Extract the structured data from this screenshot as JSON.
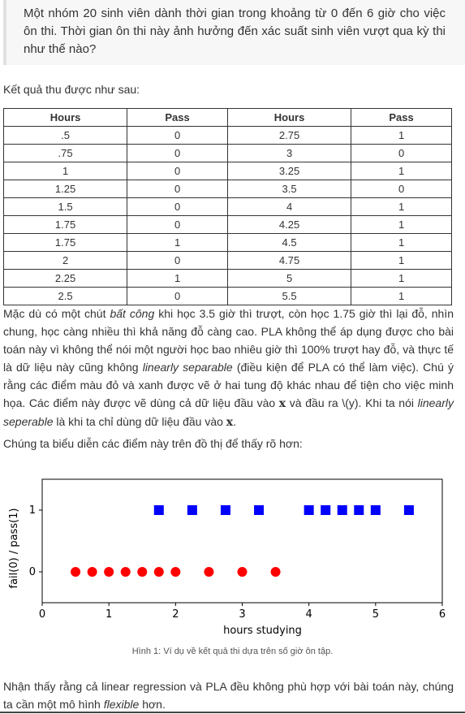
{
  "question": "Một nhóm 20 sinh viên dành thời gian trong khoảng từ 0 đến 6 giờ cho việc ôn thi. Thời gian ôn thi này ảnh hưởng đến xác suất sinh viên vượt qua kỳ thi như thế nào?",
  "intro": "Kết quả thu được như sau:",
  "table": {
    "headers": [
      "Hours",
      "Pass",
      "Hours",
      "Pass"
    ],
    "rows": [
      [
        ".5",
        "0",
        "2.75",
        "1"
      ],
      [
        ".75",
        "0",
        "3",
        "0"
      ],
      [
        "1",
        "0",
        "3.25",
        "1"
      ],
      [
        "1.25",
        "0",
        "3.5",
        "0"
      ],
      [
        "1.5",
        "0",
        "4",
        "1"
      ],
      [
        "1.75",
        "0",
        "4.25",
        "1"
      ],
      [
        "1.75",
        "1",
        "4.5",
        "1"
      ],
      [
        "2",
        "0",
        "4.75",
        "1"
      ],
      [
        "2.25",
        "1",
        "5",
        "1"
      ],
      [
        "2.5",
        "0",
        "5.5",
        "1"
      ]
    ]
  },
  "paragraph1": {
    "s1": "Mặc dù có một chút ",
    "s2": "bất công",
    "s3": " khi học 3.5 giờ thì trượt, còn học 1.75 giờ thì lại đỗ, nhìn chung, học càng nhiều thì khả năng đỗ càng cao. PLA không thể áp dụng được cho bài toán này vì không thể nói một người học bao nhiêu giờ thì 100% trượt hay đỗ, và thực tế là dữ liệu này cũng không ",
    "s4": "linearly separable",
    "s5": " (điều kiện để PLA có thể làm việc). Chú ý rằng các điểm màu đỏ và xanh được vẽ ở hai tung độ khác nhau để tiện cho việc minh họa. Các điểm này được vẽ dùng cả dữ liệu đầu vào ",
    "s6": "x",
    "s7": " và đầu ra \\(y). Khi ta nói ",
    "s8": "linearly seperable",
    "s9": " là khi ta chỉ dùng dữ liệu đầu vào ",
    "s10": "x",
    "s11": "."
  },
  "paragraph2": "Chúng ta biểu diễn các điểm này trên đồ thị để thấy rõ hơn:",
  "chart_data": {
    "type": "scatter",
    "xlabel": "hours studying",
    "ylabel": "fail(0) / pass(1)",
    "xlim": [
      0,
      6
    ],
    "ylim": [
      -0.5,
      1.5
    ],
    "xticks": [
      "0",
      "1",
      "2",
      "3",
      "4",
      "5",
      "6"
    ],
    "yticks": [
      "0",
      "1"
    ],
    "grid": false,
    "series": [
      {
        "marker": "circle",
        "color": "#ff0000",
        "points": [
          [
            0.5,
            0
          ],
          [
            0.75,
            0
          ],
          [
            1,
            0
          ],
          [
            1.25,
            0
          ],
          [
            1.5,
            0
          ],
          [
            1.75,
            0
          ],
          [
            2,
            0
          ],
          [
            2.5,
            0
          ],
          [
            3,
            0
          ],
          [
            3.5,
            0
          ]
        ]
      },
      {
        "marker": "square",
        "color": "#0000ff",
        "points": [
          [
            1.75,
            1
          ],
          [
            2.25,
            1
          ],
          [
            2.75,
            1
          ],
          [
            3.25,
            1
          ],
          [
            4,
            1
          ],
          [
            4.25,
            1
          ],
          [
            4.5,
            1
          ],
          [
            4.75,
            1
          ],
          [
            5,
            1
          ],
          [
            5.5,
            1
          ]
        ]
      }
    ]
  },
  "caption": "Hình 1: Ví dụ về kết quả thi dựa trên số giờ ôn tập.",
  "paragraph3": {
    "s1": "Nhận thấy rằng cả linear regression và PLA đều không phù hợp với bài toán này, chúng ta cần một mô hình ",
    "s2": "flexible",
    "s3": " hơn."
  }
}
